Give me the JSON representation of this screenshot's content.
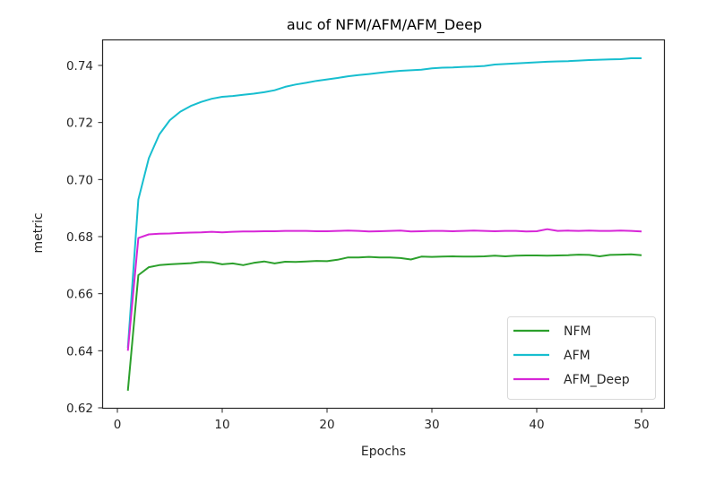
{
  "chart_data": {
    "type": "line",
    "title": "auc of NFM/AFM/AFM_Deep",
    "xlabel": "Epochs",
    "ylabel": "metric",
    "xlim": [
      -1.5,
      52.5
    ],
    "ylim": [
      0.62,
      0.749
    ],
    "xticks": [
      0,
      10,
      20,
      30,
      40,
      50
    ],
    "xtick_labels": [
      "0",
      "10",
      "20",
      "30",
      "40",
      "50"
    ],
    "yticks": [
      0.62,
      0.64,
      0.66,
      0.68,
      0.7,
      0.72,
      0.74
    ],
    "ytick_labels": [
      "0.62",
      "0.64",
      "0.66",
      "0.68",
      "0.70",
      "0.72",
      "0.74"
    ],
    "grid": false,
    "legend_position": "lower right",
    "x": [
      1,
      2,
      3,
      4,
      5,
      6,
      7,
      8,
      9,
      10,
      11,
      12,
      13,
      14,
      15,
      16,
      17,
      18,
      19,
      20,
      21,
      22,
      23,
      24,
      25,
      26,
      27,
      28,
      29,
      30,
      31,
      32,
      33,
      34,
      35,
      36,
      37,
      38,
      39,
      40,
      41,
      42,
      43,
      44,
      45,
      46,
      47,
      48,
      49,
      50
    ],
    "series": [
      {
        "name": "NFM",
        "color": "#2ca02c",
        "values": [
          0.626,
          0.6665,
          0.6693,
          0.67,
          0.6703,
          0.6705,
          0.6707,
          0.6711,
          0.671,
          0.6703,
          0.6706,
          0.67,
          0.6708,
          0.6713,
          0.6706,
          0.6712,
          0.6711,
          0.6713,
          0.6715,
          0.6714,
          0.6719,
          0.6727,
          0.6727,
          0.6729,
          0.6727,
          0.6727,
          0.6725,
          0.672,
          0.673,
          0.6729,
          0.673,
          0.6731,
          0.673,
          0.673,
          0.6731,
          0.6733,
          0.6731,
          0.6733,
          0.6734,
          0.6734,
          0.6733,
          0.6734,
          0.6735,
          0.6737,
          0.6736,
          0.6731,
          0.6736,
          0.6737,
          0.6738,
          0.6735
        ]
      },
      {
        "name": "AFM",
        "color": "#17becf",
        "values": [
          0.641,
          0.693,
          0.7075,
          0.7158,
          0.7208,
          0.7238,
          0.7258,
          0.7272,
          0.7283,
          0.729,
          0.7293,
          0.7297,
          0.7301,
          0.7306,
          0.7313,
          0.7325,
          0.7333,
          0.7339,
          0.7346,
          0.7351,
          0.7356,
          0.7362,
          0.7366,
          0.737,
          0.7374,
          0.7378,
          0.7381,
          0.7383,
          0.7385,
          0.739,
          0.7392,
          0.7393,
          0.7395,
          0.7396,
          0.7398,
          0.7403,
          0.7405,
          0.7407,
          0.7409,
          0.7411,
          0.7413,
          0.7414,
          0.7415,
          0.7417,
          0.7419,
          0.742,
          0.7421,
          0.7422,
          0.7425,
          0.7425
        ]
      },
      {
        "name": "AFM_Deep",
        "color": "#d726d7",
        "values": [
          0.64,
          0.6795,
          0.6808,
          0.681,
          0.6811,
          0.6813,
          0.6814,
          0.6815,
          0.6817,
          0.6815,
          0.6817,
          0.6818,
          0.6818,
          0.6819,
          0.6819,
          0.682,
          0.682,
          0.682,
          0.6819,
          0.6819,
          0.682,
          0.6821,
          0.682,
          0.6818,
          0.6819,
          0.682,
          0.6821,
          0.6818,
          0.6819,
          0.682,
          0.682,
          0.6819,
          0.682,
          0.6821,
          0.682,
          0.6819,
          0.682,
          0.682,
          0.6818,
          0.6819,
          0.6826,
          0.682,
          0.6821,
          0.682,
          0.6821,
          0.682,
          0.682,
          0.6821,
          0.682,
          0.6818
        ]
      }
    ]
  },
  "colors": {
    "axes": "#262626",
    "legend_border": "#d9d9d9",
    "background": "#ffffff"
  }
}
